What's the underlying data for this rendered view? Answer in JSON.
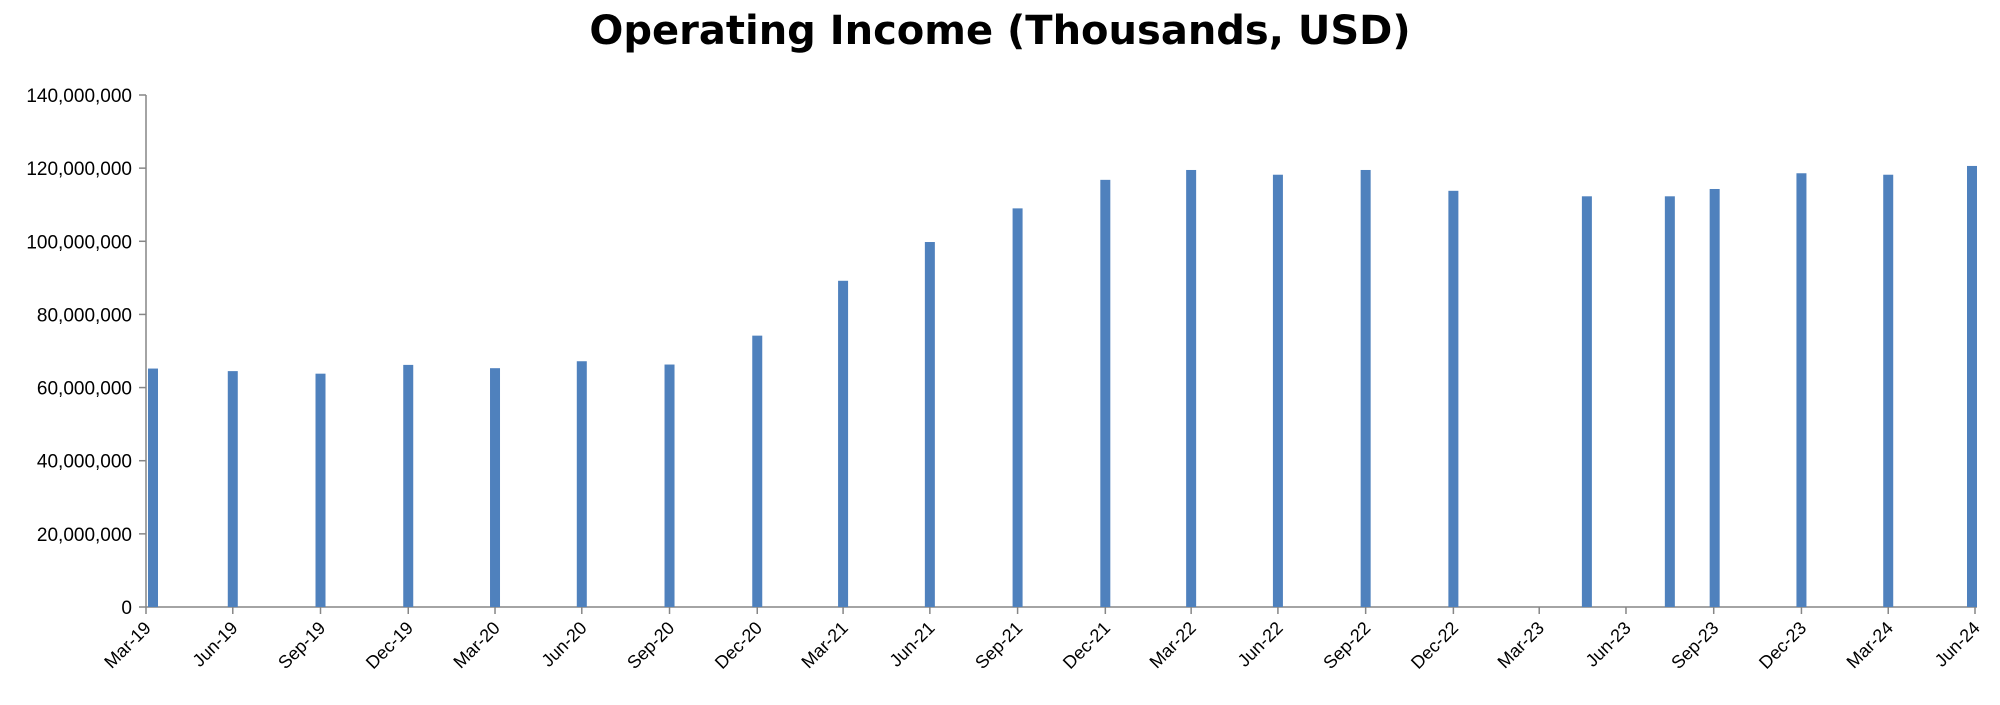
{
  "chart_data": {
    "type": "bar",
    "title": "Operating Income (Thousands, USD)",
    "xlabel": "",
    "ylabel": "",
    "x_axis_type": "date",
    "bar_color": "#4f81bd",
    "grid": false,
    "legend": "none",
    "ylim": [
      0,
      140000000
    ],
    "yticks": [
      0,
      20000000,
      40000000,
      60000000,
      80000000,
      100000000,
      120000000,
      140000000
    ],
    "ytick_labels": [
      "0",
      "20,000,000",
      "40,000,000",
      "60,000,000",
      "80,000,000",
      "100,000,000",
      "120,000,000",
      "140,000,000"
    ],
    "xlim": [
      "2019-03-31",
      "2024-06-30"
    ],
    "xticks": [
      "2019-03-31",
      "2019-06-30",
      "2019-09-30",
      "2019-12-31",
      "2020-03-31",
      "2020-06-30",
      "2020-09-30",
      "2020-12-31",
      "2021-03-31",
      "2021-06-30",
      "2021-09-30",
      "2021-12-31",
      "2022-03-31",
      "2022-06-30",
      "2022-09-30",
      "2022-12-31",
      "2023-03-31",
      "2023-06-30",
      "2023-09-30",
      "2023-12-31",
      "2024-03-31",
      "2024-06-30"
    ],
    "xtick_labels": [
      "Mar-19",
      "Jun-19",
      "Sep-19",
      "Dec-19",
      "Mar-20",
      "Jun-20",
      "Sep-20",
      "Dec-20",
      "Mar-21",
      "Jun-21",
      "Sep-21",
      "Dec-21",
      "Mar-22",
      "Jun-22",
      "Sep-22",
      "Dec-22",
      "Mar-23",
      "Jun-23",
      "Sep-23",
      "Dec-23",
      "Mar-24",
      "Jun-24"
    ],
    "dates": [
      "2019-03-31",
      "2019-06-30",
      "2019-09-30",
      "2019-12-31",
      "2020-03-31",
      "2020-06-30",
      "2020-09-30",
      "2020-12-31",
      "2021-03-31",
      "2021-06-30",
      "2021-09-30",
      "2021-12-31",
      "2022-03-31",
      "2022-06-30",
      "2022-09-30",
      "2022-12-31",
      "2023-05-20",
      "2023-08-15",
      "2023-10-01",
      "2023-12-31",
      "2024-03-31",
      "2024-06-30"
    ],
    "values": [
      65200000,
      64500000,
      63800000,
      66200000,
      65300000,
      67200000,
      66300000,
      74200000,
      89200000,
      99800000,
      109000000,
      116800000,
      119500000,
      118200000,
      119500000,
      113800000,
      112300000,
      112300000,
      114300000,
      118600000,
      118200000,
      120600000
    ]
  }
}
